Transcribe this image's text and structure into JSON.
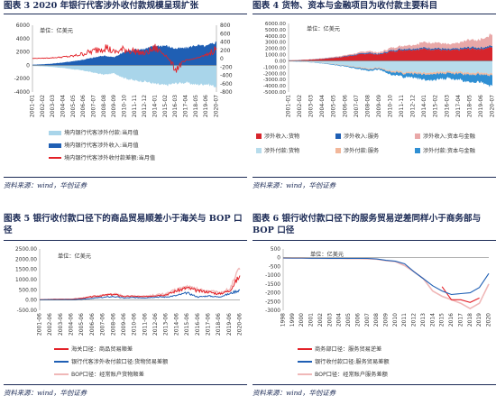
{
  "panels": [
    {
      "title": "图表 3   2020 年银行代客涉外收付款规模呈现扩张",
      "unit": "单位：亿美元",
      "source": "资料来源：wind，华创证券",
      "legend": [
        "境内银行代客涉外付款:当月值",
        "境内银行代客涉外收入:当月值",
        "境内银行代客涉外收付款差额:当月值"
      ]
    },
    {
      "title": "图表 4   货物、资本与金融项目为收付款主要科目",
      "unit": "单位：亿美元",
      "source": "资料来源：wind，华创证券",
      "legend": [
        "涉外收入:货物",
        "涉外收入:服务",
        "涉外收入:资本与金融",
        "涉外付款:货物",
        "涉外付款:服务",
        "涉外付款:资本与金融"
      ]
    },
    {
      "title": "图表 5   银行收付款口径下的商品贸易顺差小于海关与 BOP 口径",
      "unit": "单位：亿美元",
      "source": "资料来源：wind，华创证券",
      "legend": [
        "海关口径：商品贸易顺差",
        "银行代客涉外收付款口径:货物贸易差额",
        "BOP口径：经常账户货物顺差"
      ]
    },
    {
      "title": "图表 6   银行收付款口径下的服务贸易逆差同样小于商务部与 BOP 口径",
      "unit": "单位：亿美元",
      "source": "资料来源：wind，华创证券",
      "legend": [
        "商务部口径：服务贸易逆差",
        "银行收付款口径:服务贸易差额",
        "BOP口径：经常账户服务差额"
      ]
    }
  ],
  "chart_data": [
    {
      "type": "area",
      "x": [
        "2001-01",
        "2002-02",
        "2003-03",
        "2004-04",
        "2005-05",
        "2006-06",
        "2007-07",
        "2008-08",
        "2009-09",
        "2010-10",
        "2011-11",
        "2012-12",
        "2014-01",
        "2015-02",
        "2016-03",
        "2017-04",
        "2018-05",
        "2019-06",
        "2020-07"
      ],
      "ylim_left": [
        -4000,
        6000
      ],
      "yticks_left": [
        "-4000",
        "-2000",
        "0",
        "2000",
        "4000",
        "6000"
      ],
      "ylim_right": [
        -800,
        800
      ],
      "yticks_right": [
        "800",
        "600",
        "400",
        "200",
        "0",
        "-200",
        "-400",
        "-600",
        "-800"
      ],
      "series": [
        {
          "name": "境内银行代客涉外付款:当月值",
          "color": "#a9d5ea",
          "axis": "left",
          "values": [
            -100,
            -150,
            -250,
            -400,
            -600,
            -800,
            -1100,
            -1400,
            -1200,
            -1900,
            -2300,
            -2400,
            -2800,
            -3000,
            -2700,
            -2600,
            -2900,
            -2800,
            -3200
          ]
        },
        {
          "name": "境内银行代客涉外收入:当月值",
          "color": "#1f5fb4",
          "axis": "left",
          "values": [
            100,
            150,
            260,
            420,
            620,
            850,
            1150,
            1450,
            1200,
            2000,
            2350,
            2450,
            2900,
            2950,
            2500,
            2600,
            3000,
            2850,
            3500
          ]
        },
        {
          "name": "境内银行代客涉外收付款差额:当月值",
          "color": "#e32128",
          "axis": "right",
          "values": [
            5,
            10,
            20,
            40,
            60,
            120,
            180,
            300,
            150,
            220,
            180,
            120,
            250,
            100,
            -250,
            -50,
            10,
            80,
            250
          ]
        }
      ]
    },
    {
      "type": "area",
      "x": [
        "2001-01",
        "2002-02",
        "2003-03",
        "2004-04",
        "2005-05",
        "2006-06",
        "2007-07",
        "2008-08",
        "2009-09",
        "2010-10",
        "2011-11",
        "2012-12",
        "2014-01",
        "2015-02",
        "2016-03",
        "2017-04",
        "2018-05",
        "2019-06",
        "2020-07"
      ],
      "ylim": [
        -5000,
        6000
      ],
      "yticks": [
        "6000.00",
        "5000.00",
        "4000.00",
        "3000.00",
        "2000.00",
        "1000.00",
        "0.00",
        "-1000.00",
        "-2000.00",
        "-3000.00",
        "-4000.00",
        "-5000.00"
      ],
      "series": [
        {
          "name": "涉外收入:货物",
          "color": "#d7252c",
          "sign": 1,
          "values": [
            80,
            120,
            200,
            320,
            480,
            700,
            950,
            1200,
            1000,
            1500,
            1750,
            1800,
            1900,
            1850,
            1650,
            1750,
            1950,
            1900,
            2200
          ]
        },
        {
          "name": "涉外收入:服务",
          "color": "#1f5fb4",
          "sign": 1,
          "values": [
            10,
            15,
            25,
            40,
            60,
            80,
            110,
            140,
            120,
            160,
            190,
            200,
            220,
            230,
            210,
            220,
            250,
            240,
            230
          ]
        },
        {
          "name": "涉外收入:资本与金融",
          "color": "#e9a8a8",
          "sign": 1,
          "values": [
            10,
            20,
            30,
            60,
            90,
            130,
            180,
            250,
            200,
            400,
            500,
            600,
            900,
            900,
            750,
            900,
            1200,
            1300,
            1800
          ]
        },
        {
          "name": "涉外付款:货物",
          "color": "#b7dcec",
          "sign": -1,
          "values": [
            80,
            120,
            200,
            330,
            500,
            720,
            950,
            1200,
            1050,
            1550,
            1800,
            1850,
            1950,
            1850,
            1700,
            1800,
            1950,
            1900,
            2100
          ]
        },
        {
          "name": "涉外付款:服务",
          "color": "#f2b79a",
          "sign": -1,
          "values": [
            10,
            15,
            25,
            40,
            60,
            80,
            110,
            150,
            140,
            180,
            220,
            240,
            270,
            280,
            260,
            270,
            290,
            280,
            260
          ]
        },
        {
          "name": "涉外付款:资本与金融",
          "color": "#2f8fd3",
          "sign": -1,
          "values": [
            10,
            20,
            30,
            60,
            90,
            130,
            180,
            250,
            200,
            420,
            520,
            620,
            900,
            950,
            800,
            950,
            1250,
            1300,
            1700
          ]
        }
      ]
    },
    {
      "type": "line",
      "x": [
        "2001-06",
        "2002-06",
        "2003-06",
        "2004-06",
        "2005-06",
        "2006-06",
        "2007-06",
        "2008-06",
        "2009-06",
        "2010-06",
        "2011-06",
        "2012-06",
        "2013-06",
        "2014-06",
        "2015-06",
        "2016-06",
        "2017-06",
        "2018-06",
        "2019-06",
        "2020-06"
      ],
      "ylim": [
        -500,
        2500
      ],
      "yticks": [
        "2500.00",
        "2000.00",
        "1500.00",
        "1000.00",
        "500.00",
        "0.00",
        "-500.00"
      ],
      "series": [
        {
          "name": "海关口径：商品贸易顺差",
          "color": "#e32128",
          "values": [
            20,
            30,
            40,
            40,
            90,
            170,
            230,
            280,
            180,
            180,
            160,
            230,
            260,
            450,
            600,
            450,
            400,
            300,
            450,
            1200
          ]
        },
        {
          "name": "银行代客涉外收付款口径:货物贸易差额",
          "color": "#1f5fb4",
          "values": [
            10,
            20,
            20,
            20,
            40,
            90,
            130,
            170,
            100,
            120,
            110,
            150,
            150,
            220,
            350,
            150,
            200,
            150,
            300,
            500
          ]
        },
        {
          "name": "BOP口径：经常账户货物顺差",
          "color": "#f0b8b8",
          "values": [
            15,
            25,
            35,
            40,
            80,
            160,
            220,
            300,
            200,
            200,
            180,
            250,
            300,
            500,
            650,
            500,
            450,
            350,
            500,
            1500
          ]
        }
      ]
    },
    {
      "type": "line",
      "x": [
        "1998",
        "1999",
        "2000",
        "2001",
        "2002",
        "2003",
        "2004",
        "2005",
        "2006",
        "2007",
        "2008",
        "2009",
        "2010",
        "2011",
        "2012",
        "2013",
        "2014",
        "2015",
        "2016",
        "2017",
        "2018",
        "2019",
        "2020"
      ],
      "ylim": [
        -3000,
        500
      ],
      "yticks": [
        "500",
        "0",
        "-500",
        "-1000",
        "-1500",
        "-2000",
        "-2500",
        "-3000"
      ],
      "series": [
        {
          "name": "商务部口径：服务贸易逆差",
          "color": "#e32128",
          "values": [
            null,
            null,
            null,
            null,
            null,
            null,
            null,
            null,
            null,
            null,
            null,
            null,
            null,
            null,
            null,
            null,
            null,
            -1650,
            -2400,
            -2400,
            -2550,
            -2300,
            null
          ]
        },
        {
          "name": "银行收付款口径:服务贸易差额",
          "color": "#1f5fb4",
          "values": [
            -10,
            -20,
            -20,
            -30,
            -30,
            -40,
            -30,
            -40,
            -40,
            -40,
            -70,
            -150,
            -200,
            -350,
            -800,
            -1200,
            -1600,
            -1900,
            -2100,
            -2050,
            -2000,
            -1700,
            -900
          ]
        },
        {
          "name": "BOP口径：经常账户服务差额",
          "color": "#f0b8b8",
          "values": [
            -20,
            -20,
            -20,
            -30,
            -30,
            -40,
            -40,
            -50,
            -50,
            -60,
            -80,
            -170,
            -220,
            -450,
            -800,
            -1200,
            -1900,
            -2200,
            -2400,
            -2600,
            -2900,
            -2600,
            -1500
          ]
        }
      ]
    }
  ]
}
